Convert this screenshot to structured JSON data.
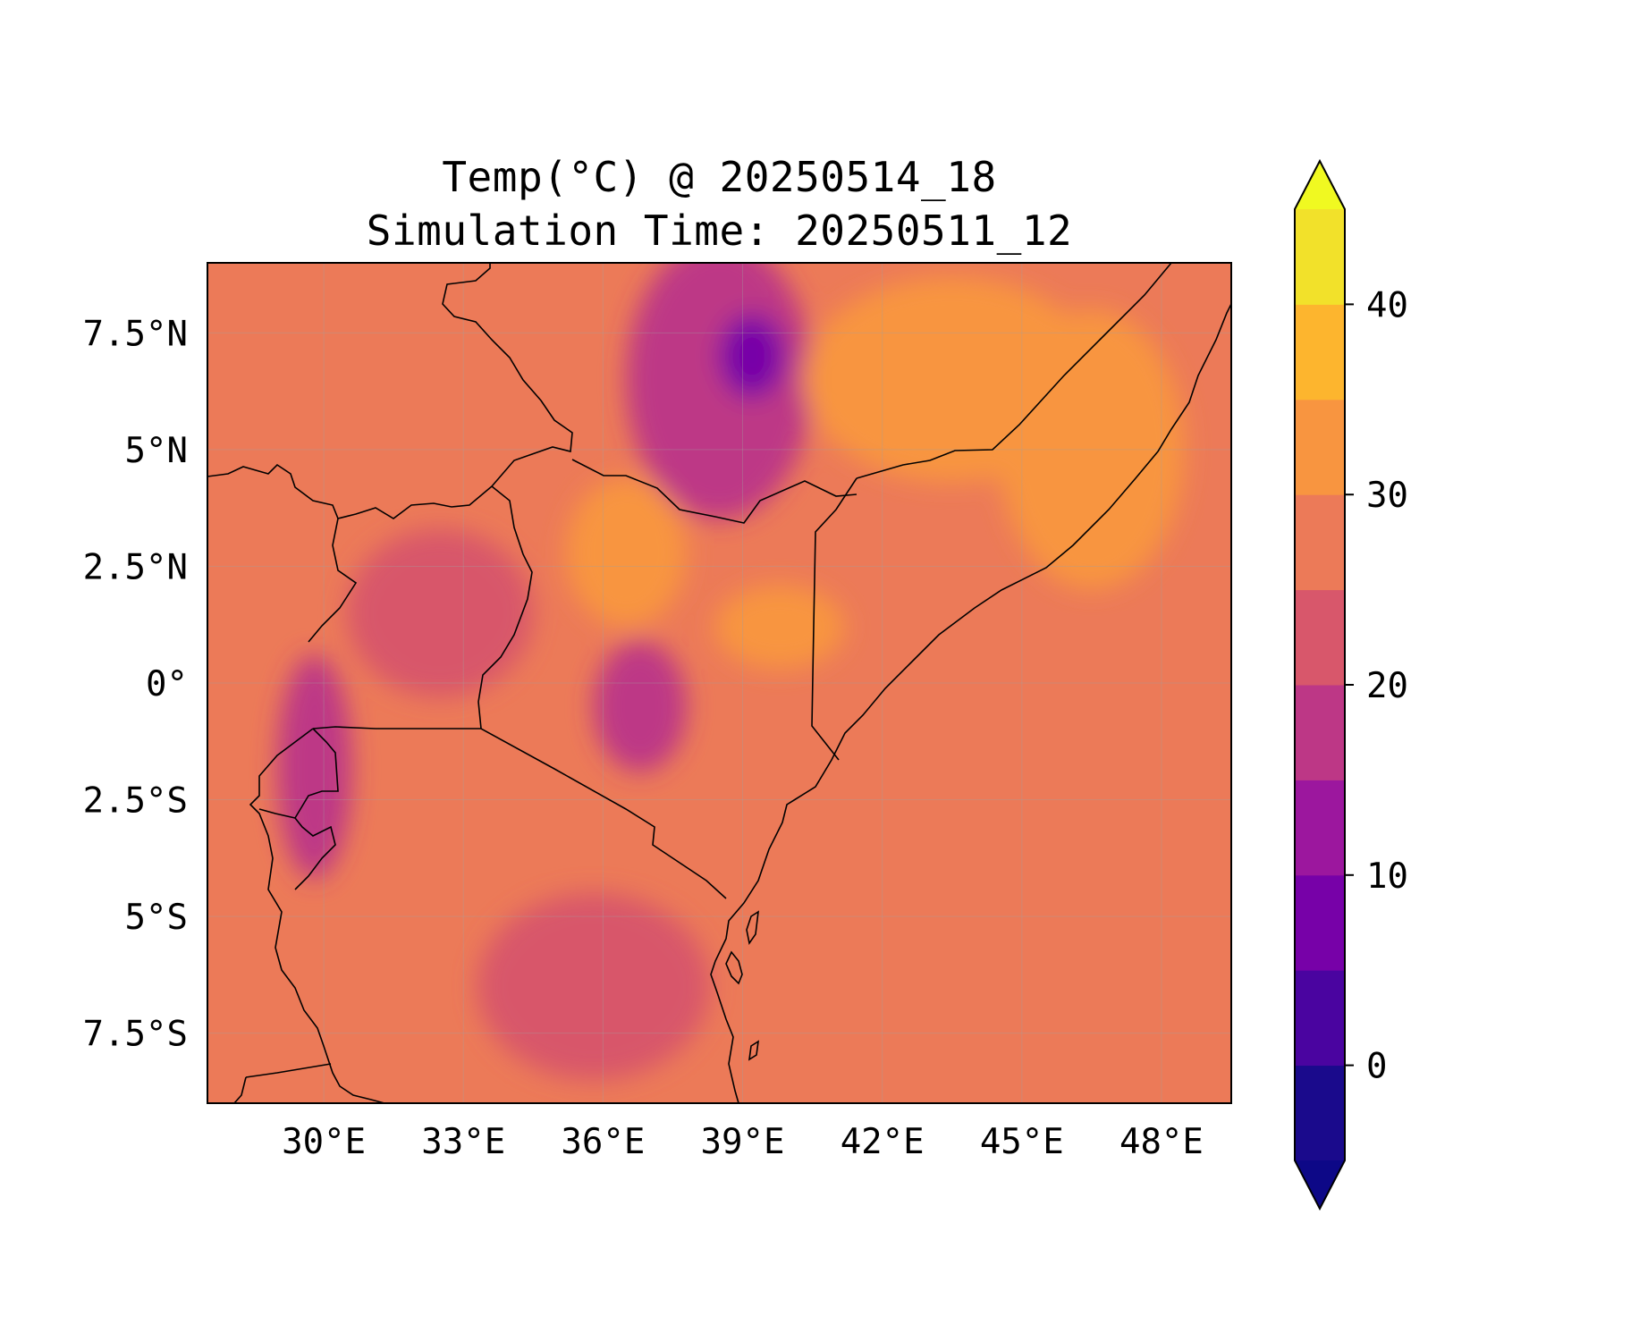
{
  "title": {
    "line1": "Temp(°C) @ 20250514_18",
    "line2": "Simulation Time: 20250511_12"
  },
  "map_extent": {
    "lon": [
      27.5,
      49.5
    ],
    "lat": [
      -9.0,
      9.0
    ]
  },
  "axes": {
    "x_ticks": [
      {
        "value": 30,
        "label": "30°E"
      },
      {
        "value": 33,
        "label": "33°E"
      },
      {
        "value": 36,
        "label": "36°E"
      },
      {
        "value": 39,
        "label": "39°E"
      },
      {
        "value": 42,
        "label": "42°E"
      },
      {
        "value": 45,
        "label": "45°E"
      },
      {
        "value": 48,
        "label": "48°E"
      }
    ],
    "y_ticks": [
      {
        "value": 7.5,
        "label": "7.5°N"
      },
      {
        "value": 5,
        "label": "5°N"
      },
      {
        "value": 2.5,
        "label": "2.5°N"
      },
      {
        "value": 0,
        "label": "0°"
      },
      {
        "value": -2.5,
        "label": "2.5°S"
      },
      {
        "value": -5,
        "label": "5°S"
      },
      {
        "value": -7.5,
        "label": "7.5°S"
      }
    ],
    "gridlines": true
  },
  "colorbar": {
    "levels": [
      -5,
      0,
      5,
      10,
      15,
      20,
      25,
      30,
      35,
      40,
      45
    ],
    "colors": [
      "#1a0a8c",
      "#4a04a0",
      "#7701a8",
      "#9c179e",
      "#bd3786",
      "#d8576b",
      "#ec7a58",
      "#f89540",
      "#fdb52e",
      "#f2e12a"
    ],
    "under_color": "#0d0887",
    "over_color": "#f0f921",
    "extend": "both",
    "ticks": [
      {
        "value": 0,
        "label": "0"
      },
      {
        "value": 10,
        "label": "10"
      },
      {
        "value": 20,
        "label": "20"
      },
      {
        "value": 30,
        "label": "30"
      },
      {
        "value": 40,
        "label": "40"
      }
    ]
  },
  "chart_data": {
    "type": "heatmap",
    "variable": "Temp(°C)",
    "base_value": 27.5,
    "regions": [
      {
        "name": "cool-highlands-ethiopia",
        "lon": 38.5,
        "lat": 6.5,
        "rx": 2.0,
        "ry": 3.0,
        "value": 17
      },
      {
        "name": "cold-core-ethiopia",
        "lon": 39.2,
        "lat": 7.0,
        "rx": 0.7,
        "ry": 0.9,
        "value": 8
      },
      {
        "name": "hot-turkana",
        "lon": 36.5,
        "lat": 2.8,
        "rx": 1.3,
        "ry": 1.6,
        "value": 33
      },
      {
        "name": "hot-north-kenya",
        "lon": 39.8,
        "lat": 1.2,
        "rx": 1.4,
        "ry": 0.9,
        "value": 32
      },
      {
        "name": "hot-ogaden",
        "lon": 43.5,
        "lat": 6.5,
        "rx": 3.2,
        "ry": 2.2,
        "value": 32
      },
      {
        "name": "hot-somalia-coast",
        "lon": 46.5,
        "lat": 5.0,
        "rx": 2.0,
        "ry": 3.0,
        "value": 32
      },
      {
        "name": "cool-kenya-highlands",
        "lon": 36.8,
        "lat": -0.5,
        "rx": 1.0,
        "ry": 1.4,
        "value": 17
      },
      {
        "name": "cool-rift-albertine",
        "lon": 29.8,
        "lat": -1.8,
        "rx": 0.8,
        "ry": 2.4,
        "value": 18
      },
      {
        "name": "mild-tanzania-highlands",
        "lon": 35.8,
        "lat": -6.5,
        "rx": 2.5,
        "ry": 2.0,
        "value": 21
      },
      {
        "name": "mild-uganda",
        "lon": 32.5,
        "lat": 1.5,
        "rx": 2.0,
        "ry": 1.8,
        "value": 23
      }
    ]
  }
}
